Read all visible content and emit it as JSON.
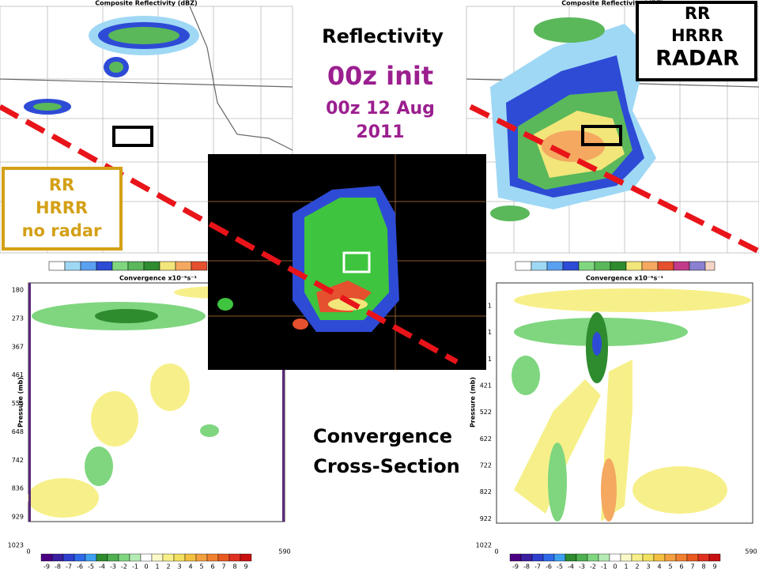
{
  "slide": {
    "title": "Reflectivity",
    "init": "00z init",
    "date": [
      "00z 12 Aug",
      "2011"
    ],
    "bottom_label": [
      "Convergence",
      "Cross-Section"
    ]
  },
  "panels": {
    "top_left": {
      "title": "Composite Reflectivity (dBZ)",
      "label": [
        "RR",
        "HRRR",
        "no radar"
      ]
    },
    "top_right": {
      "title": "Composite Reflectivity (dBZ)",
      "label": [
        "RR",
        "HRRR",
        "RADAR"
      ]
    },
    "bottom_left": {
      "title": "Convergence x10⁻⁵s⁻¹",
      "y_label": "Pressure (mb)",
      "y_ticks": [
        180,
        273,
        367,
        461,
        555,
        648,
        742,
        836,
        929,
        1023
      ],
      "x_ticks": [
        0,
        590
      ],
      "colorbar": [
        -9,
        -8,
        -7,
        -6,
        -5,
        -4,
        -3,
        -2,
        -1,
        0,
        1,
        2,
        3,
        4,
        5,
        6,
        7,
        8,
        9
      ]
    },
    "bottom_right": {
      "title": "Convergence x10⁻⁵s⁻¹",
      "y_label": "Pressure (mb)",
      "y_ticks": [
        1,
        1,
        1,
        421,
        522,
        622,
        722,
        822,
        922,
        1022
      ],
      "x_ticks": [
        0,
        590
      ],
      "colorbar": [
        -9,
        -8,
        -7,
        -6,
        -5,
        -4,
        -3,
        -2,
        -1,
        0,
        1,
        2,
        3,
        4,
        5,
        6,
        7,
        8,
        9
      ]
    }
  }
}
